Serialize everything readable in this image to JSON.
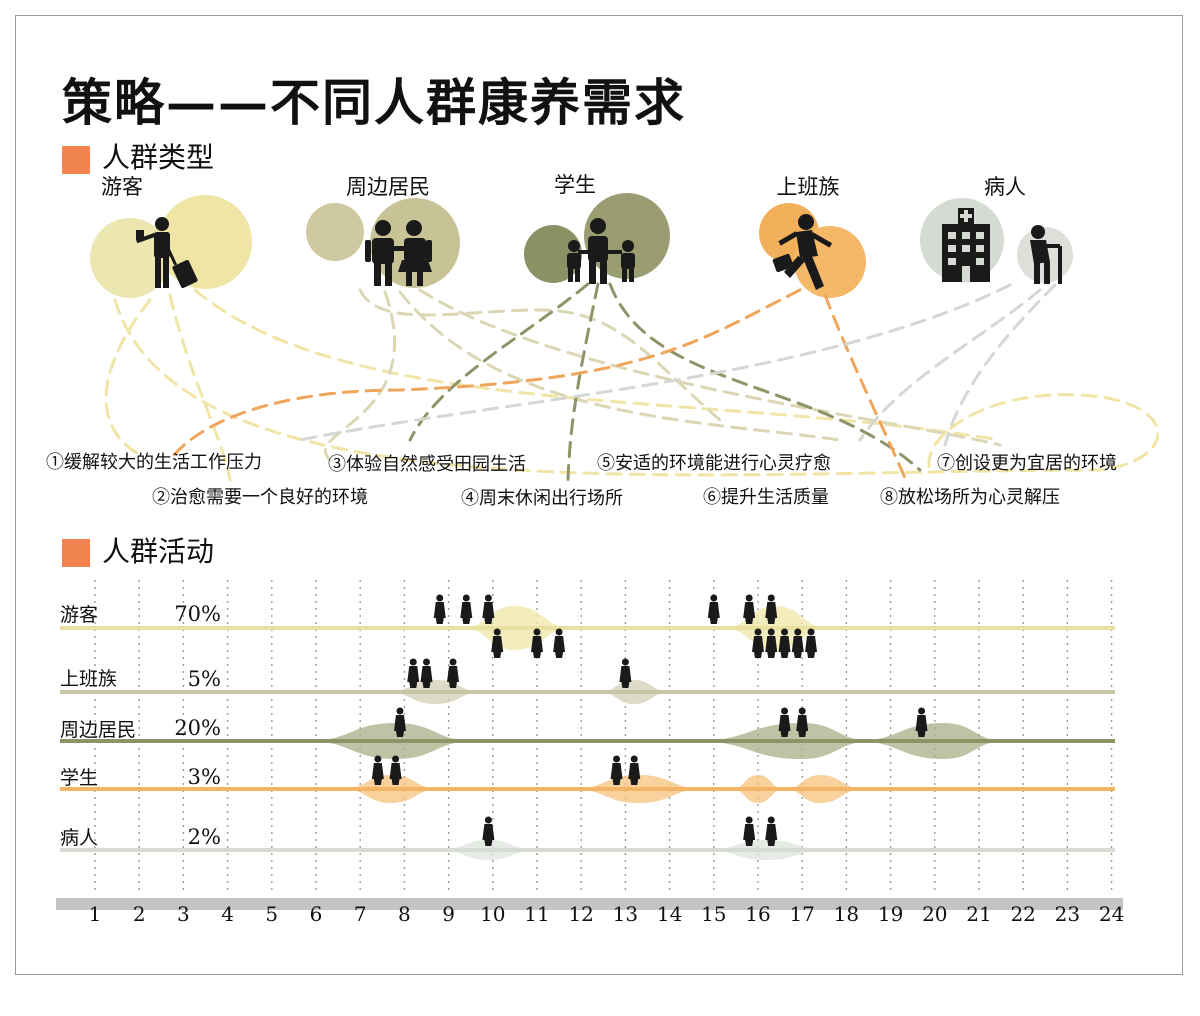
{
  "title": "策略——不同人群康养需求",
  "section_types": {
    "label": "人群类型",
    "color": "#f0834f"
  },
  "groups": [
    {
      "label": "游客",
      "icon": "tourist-with-luggage-icon",
      "colors": [
        "#ece6b0",
        "#efe5a4"
      ]
    },
    {
      "label": "周边居民",
      "icon": "couple-icon",
      "colors": [
        "#cfc9a2",
        "#c8c397"
      ]
    },
    {
      "label": "学生",
      "icon": "family-with-children-icon",
      "colors": [
        "#8c9165",
        "#9a9c72"
      ]
    },
    {
      "label": "上班族",
      "icon": "running-with-briefcase-icon",
      "colors": [
        "#f3b05a",
        "#f5b868"
      ]
    },
    {
      "label": "病人",
      "icon": "hospital-and-elderly-icon",
      "colors": [
        "#d5dbd3",
        "#dcdfda"
      ]
    }
  ],
  "needs": [
    "①缓解较大的生活工作压力",
    "②治愈需要一个良好的环境",
    "③体验自然感受田园生活",
    "④周末休闲出行场所",
    "⑤安适的环境能进行心灵疗愈",
    "⑥提升生活质量",
    "⑦创设更为宜居的环境",
    "⑧放松场所为心灵解压"
  ],
  "section_activity": {
    "label": "人群活动",
    "color": "#f0834f"
  },
  "activity_rows": [
    {
      "name": "游客",
      "percent": "70%",
      "color": "#efe7a8",
      "line": "#e9e0a0",
      "peaks": [
        [
          9.3,
          10.5,
          11.8
        ],
        [
          15.2,
          16.4,
          17.6
        ]
      ],
      "figures": [
        8.8,
        9.4,
        9.9,
        10.1,
        11.0,
        11.5,
        15.0,
        15.8,
        16.3,
        16.0,
        16.3,
        16.6,
        16.9,
        17.2
      ]
    },
    {
      "name": "上班族",
      "percent": "5%",
      "color": "#d2cfb3",
      "line": "#c9c6a6",
      "peaks": [
        [
          7.6,
          8.7,
          9.8
        ],
        [
          12.4,
          13.2,
          14.0
        ]
      ],
      "figures": [
        8.2,
        8.5,
        9.1,
        13.0
      ]
    },
    {
      "name": "周边居民",
      "percent": "20%",
      "color": "#a9ad87",
      "line": "#8e9468",
      "peaks": [
        [
          5.8,
          7.8,
          9.6
        ],
        [
          14.6,
          17.0,
          18.6
        ],
        [
          18.2,
          20.2,
          21.6
        ]
      ],
      "figures": [
        7.9,
        16.6,
        17.0,
        19.7
      ]
    },
    {
      "name": "学生",
      "percent": "3%",
      "color": "#f6c27c",
      "line": "#f3b565",
      "peaks": [
        [
          6.6,
          7.7,
          8.8
        ],
        [
          11.8,
          13.3,
          14.8
        ],
        [
          15.4,
          16.0,
          16.6
        ],
        [
          16.6,
          17.4,
          18.4
        ]
      ],
      "figures": [
        7.4,
        7.8,
        12.8,
        13.2
      ]
    },
    {
      "name": "病人",
      "percent": "2%",
      "color": "#dfe4dc",
      "line": "#d6dbd3",
      "peaks": [
        [
          8.8,
          9.9,
          11.0
        ],
        [
          14.8,
          16.2,
          17.6
        ]
      ],
      "figures": [
        9.9,
        15.8,
        16.3
      ]
    }
  ],
  "hours": [
    "1",
    "2",
    "3",
    "4",
    "5",
    "6",
    "7",
    "8",
    "9",
    "10",
    "11",
    "12",
    "13",
    "14",
    "15",
    "16",
    "17",
    "18",
    "19",
    "20",
    "21",
    "22",
    "23",
    "24"
  ]
}
